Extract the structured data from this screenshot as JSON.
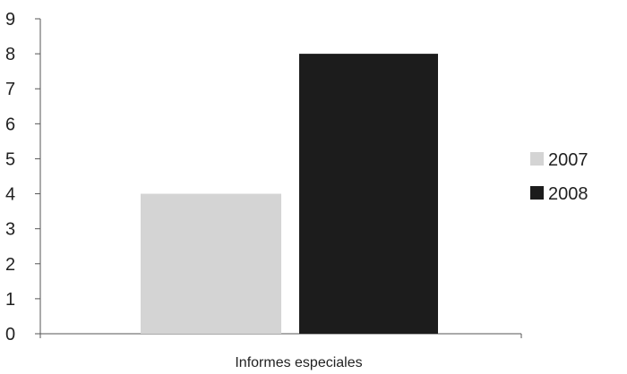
{
  "chart_data": {
    "type": "bar",
    "categories": [
      "Informes especiales"
    ],
    "series": [
      {
        "name": "2007",
        "values": [
          4
        ],
        "color": "#d4d4d4"
      },
      {
        "name": "2008",
        "values": [
          8
        ],
        "color": "#1c1c1c"
      }
    ],
    "ylim": [
      0,
      9
    ],
    "yticks": [
      "0",
      "1",
      "2",
      "3",
      "4",
      "5",
      "6",
      "7",
      "8",
      "9"
    ],
    "grid": false,
    "legend_position": "right"
  }
}
